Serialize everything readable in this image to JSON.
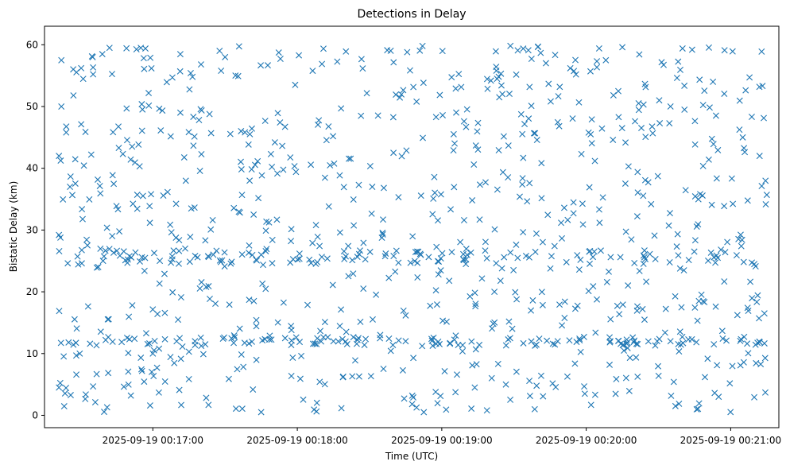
{
  "chart_data": {
    "type": "scatter",
    "title": "Detections in Delay",
    "xlabel": "Time (UTC)",
    "ylabel": "Bistatic Delay (km)",
    "marker": "x",
    "color": "#1f77b4",
    "grid": false,
    "legend": "none",
    "xlim": [
      "2025-09-19 00:16:15",
      "2025-09-19 00:21:20"
    ],
    "ylim": [
      -2,
      63
    ],
    "xticks": [
      "2025-09-19 00:17:00",
      "2025-09-19 00:18:00",
      "2025-09-19 00:19:00",
      "2025-09-19 00:20:00",
      "2025-09-19 00:21:00"
    ],
    "yticks": [
      0,
      10,
      20,
      30,
      40,
      50,
      60
    ],
    "series": [
      {
        "point_count": 1000,
        "approx_y_range": [
          0.5,
          60
        ],
        "structure": "uniform scatter between 0 and 60 km with dense horizontal tracks near 12 km and 24-26 km",
        "x_start": "2025-09-19 00:16:21",
        "x_end": "2025-09-19 00:21:15",
        "sample_points": [
          {
            "x": "2025-09-19 00:16:21",
            "y": 42.0
          },
          {
            "x": "2025-09-19 00:16:21",
            "y": 29.2
          },
          {
            "x": "2025-09-19 00:16:21",
            "y": 4.5
          },
          {
            "x": "2025-09-19 00:16:22",
            "y": 57.5
          },
          {
            "x": "2025-09-19 00:16:22",
            "y": 50.0
          },
          {
            "x": "2025-09-19 00:16:24",
            "y": 45.8
          },
          {
            "x": "2025-09-19 00:16:25",
            "y": 11.8
          },
          {
            "x": "2025-09-19 00:16:35",
            "y": 58.0
          },
          {
            "x": "2025-09-19 00:16:41",
            "y": 1.3
          },
          {
            "x": "2025-09-19 00:16:42",
            "y": 59.5
          },
          {
            "x": "2025-09-19 00:16:55",
            "y": 59.5
          },
          {
            "x": "2025-09-19 00:17:00",
            "y": 10.0
          },
          {
            "x": "2025-09-19 00:17:15",
            "y": 10.3
          },
          {
            "x": "2025-09-19 00:17:30",
            "y": 58.0
          },
          {
            "x": "2025-09-19 00:17:40",
            "y": 27.5
          },
          {
            "x": "2025-09-19 00:17:45",
            "y": 26.0
          },
          {
            "x": "2025-09-19 00:18:05",
            "y": 25.2
          },
          {
            "x": "2025-09-19 00:18:15",
            "y": 12.0
          },
          {
            "x": "2025-09-19 00:18:25",
            "y": 12.2
          },
          {
            "x": "2025-09-19 00:18:40",
            "y": 25.8
          },
          {
            "x": "2025-09-19 00:18:45",
            "y": 12.0
          },
          {
            "x": "2025-09-19 00:18:52",
            "y": 59.8
          },
          {
            "x": "2025-09-19 00:19:10",
            "y": 24.5
          },
          {
            "x": "2025-09-19 00:19:25",
            "y": 23.8
          },
          {
            "x": "2025-09-19 00:19:35",
            "y": 25.8
          },
          {
            "x": "2025-09-19 00:19:40",
            "y": 59.7
          },
          {
            "x": "2025-09-19 00:19:58",
            "y": 42.3
          },
          {
            "x": "2025-09-19 00:20:10",
            "y": 12.0
          },
          {
            "x": "2025-09-19 00:20:15",
            "y": 59.6
          },
          {
            "x": "2025-09-19 00:20:20",
            "y": 12.1
          },
          {
            "x": "2025-09-19 00:20:35",
            "y": 12.0
          },
          {
            "x": "2025-09-19 00:20:40",
            "y": 59.4
          },
          {
            "x": "2025-09-19 00:20:55",
            "y": 3.0
          },
          {
            "x": "2025-09-19 00:21:05",
            "y": 45.0
          },
          {
            "x": "2025-09-19 00:21:12",
            "y": 42.0
          },
          {
            "x": "2025-09-19 00:21:14",
            "y": 16.5
          },
          {
            "x": "2025-09-19 00:21:15",
            "y": 35.7
          }
        ]
      }
    ]
  }
}
